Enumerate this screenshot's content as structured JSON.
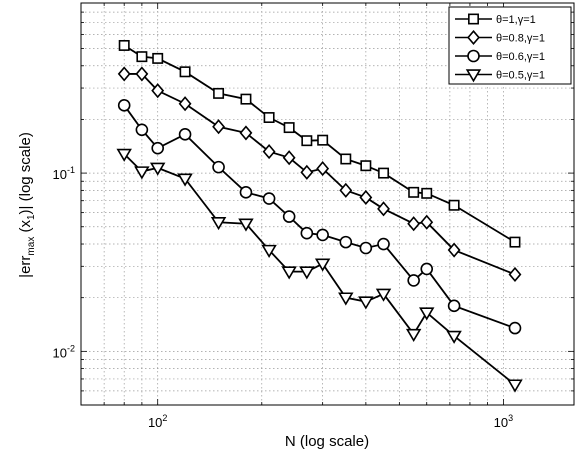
{
  "chart_data": {
    "type": "line",
    "xlabel": "N (log scale)",
    "ylabel_parts": {
      "pre": "|err",
      "sub1": "max",
      "mid": " (x",
      "sub2": "1",
      "post": ")| (log scale)"
    },
    "x_scale": "log",
    "y_scale": "log",
    "xlim": [
      60,
      1600
    ],
    "ylim": [
      0.005,
      0.9
    ],
    "grid": true,
    "legend_position": "top-right",
    "x_ticks": [
      {
        "value": 100,
        "base": "10",
        "exp": "2"
      },
      {
        "value": 1000,
        "base": "10",
        "exp": "3"
      }
    ],
    "y_ticks": [
      {
        "value": 0.01,
        "base": "10",
        "exp": "-2"
      },
      {
        "value": 0.1,
        "base": "10",
        "exp": "-1"
      }
    ],
    "series": [
      {
        "name": "θ=1,γ=1",
        "marker": "square",
        "points": [
          [
            80,
            0.52
          ],
          [
            90,
            0.45
          ],
          [
            100,
            0.44
          ],
          [
            120,
            0.37
          ],
          [
            150,
            0.28
          ],
          [
            180,
            0.26
          ],
          [
            210,
            0.205
          ],
          [
            240,
            0.18
          ],
          [
            270,
            0.152
          ],
          [
            300,
            0.153
          ],
          [
            350,
            0.12
          ],
          [
            400,
            0.11
          ],
          [
            450,
            0.1
          ],
          [
            550,
            0.078
          ],
          [
            600,
            0.077
          ],
          [
            720,
            0.066
          ],
          [
            1080,
            0.041
          ]
        ]
      },
      {
        "name": "θ=0.8,γ=1",
        "marker": "diamond",
        "points": [
          [
            80,
            0.36
          ],
          [
            90,
            0.36
          ],
          [
            100,
            0.29
          ],
          [
            120,
            0.245
          ],
          [
            150,
            0.182
          ],
          [
            180,
            0.168
          ],
          [
            210,
            0.132
          ],
          [
            240,
            0.122
          ],
          [
            270,
            0.101
          ],
          [
            300,
            0.106
          ],
          [
            350,
            0.08
          ],
          [
            400,
            0.073
          ],
          [
            450,
            0.063
          ],
          [
            550,
            0.052
          ],
          [
            600,
            0.053
          ],
          [
            720,
            0.037
          ],
          [
            1080,
            0.027
          ]
        ]
      },
      {
        "name": "θ=0.6,γ=1",
        "marker": "circle",
        "points": [
          [
            80,
            0.24
          ],
          [
            90,
            0.175
          ],
          [
            100,
            0.138
          ],
          [
            120,
            0.165
          ],
          [
            150,
            0.108
          ],
          [
            180,
            0.078
          ],
          [
            210,
            0.072
          ],
          [
            240,
            0.057
          ],
          [
            270,
            0.046
          ],
          [
            300,
            0.045
          ],
          [
            350,
            0.041
          ],
          [
            400,
            0.038
          ],
          [
            450,
            0.04
          ],
          [
            550,
            0.025
          ],
          [
            600,
            0.029
          ],
          [
            720,
            0.018
          ],
          [
            1080,
            0.0135
          ]
        ]
      },
      {
        "name": "θ=0.5,γ=1",
        "marker": "triangle-down",
        "points": [
          [
            80,
            0.128
          ],
          [
            90,
            0.102
          ],
          [
            100,
            0.107
          ],
          [
            120,
            0.093
          ],
          [
            150,
            0.053
          ],
          [
            180,
            0.052
          ],
          [
            210,
            0.037
          ],
          [
            240,
            0.028
          ],
          [
            270,
            0.028
          ],
          [
            300,
            0.031
          ],
          [
            350,
            0.02
          ],
          [
            400,
            0.019
          ],
          [
            450,
            0.021
          ],
          [
            550,
            0.0125
          ],
          [
            600,
            0.0165
          ],
          [
            720,
            0.0122
          ],
          [
            1080,
            0.0065
          ]
        ]
      }
    ]
  }
}
